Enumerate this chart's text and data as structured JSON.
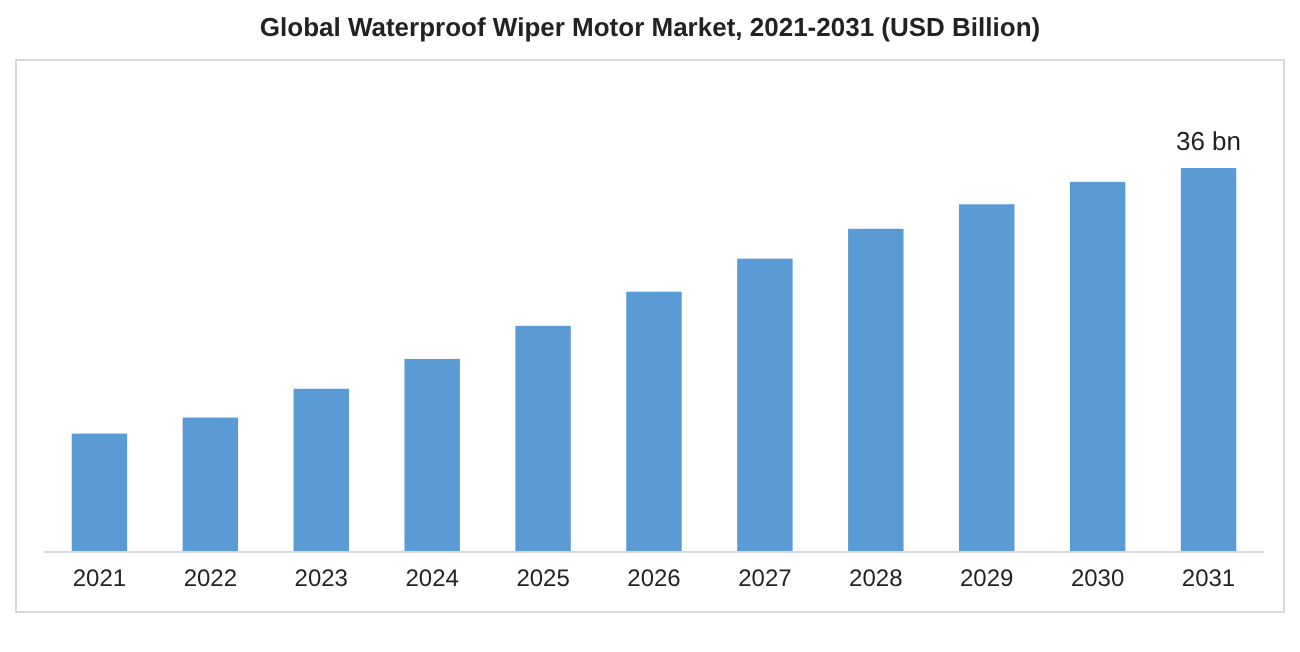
{
  "chart_data": {
    "type": "bar",
    "title": "Global Waterproof Wiper Motor Market, 2021-2031 (USD Billion)",
    "categories": [
      "2021",
      "2022",
      "2023",
      "2024",
      "2025",
      "2026",
      "2027",
      "2028",
      "2029",
      "2030",
      "2031"
    ],
    "values": [
      11.1,
      12.6,
      15.3,
      18.1,
      21.2,
      24.4,
      27.5,
      30.3,
      32.6,
      34.7,
      36
    ],
    "value_labels": [
      null,
      null,
      null,
      null,
      null,
      null,
      null,
      null,
      null,
      null,
      "36 bn"
    ],
    "color": "#5b9bd5"
  }
}
